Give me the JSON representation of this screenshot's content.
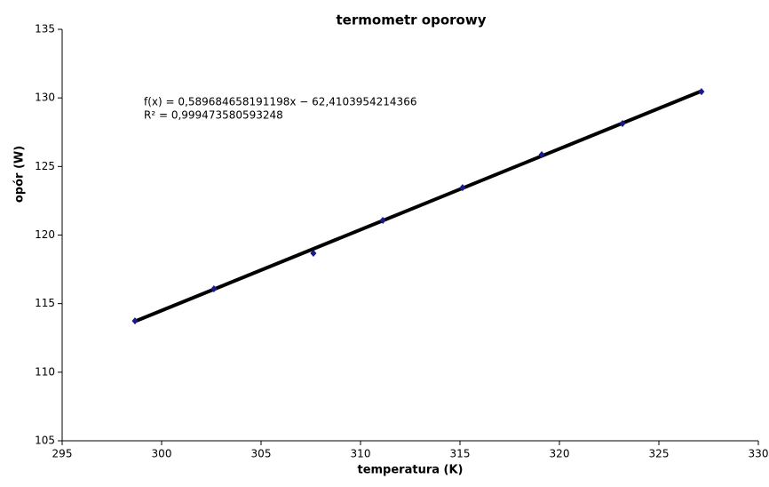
{
  "chart_data": {
    "type": "scatter",
    "title": "termometr oporowy",
    "x_label": "temperatura (K)",
    "y_label": "opór (W)",
    "x": [
      298.66,
      302.63,
      307.63,
      311.12,
      315.13,
      319.11,
      323.17,
      327.14
    ],
    "series": [
      {
        "color": "#1a1a8c",
        "values": [
          113.74,
          116.08,
          118.67,
          121.07,
          123.46,
          125.86,
          128.13,
          130.46
        ]
      }
    ],
    "trendline": {
      "color": "#000000",
      "slope": 0.589684658191198,
      "intercept": -62.4103954214366,
      "equation": "f(x) = 0,589684658191198x − 62,4103954214366",
      "r_squared": "R² = 0,999473580593248"
    },
    "xlim": [
      295,
      330
    ],
    "xticks": [
      295,
      300,
      305,
      310,
      315,
      320,
      325,
      330
    ],
    "ylim": [
      105,
      135
    ],
    "yticks": [
      105,
      110,
      115,
      120,
      125,
      130,
      135
    ],
    "grid": false
  }
}
